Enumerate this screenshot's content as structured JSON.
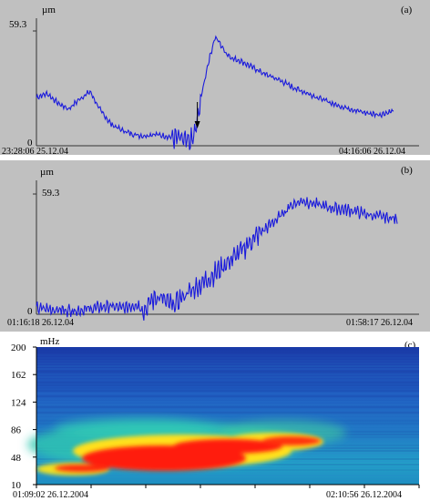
{
  "chart_data": [
    {
      "type": "line",
      "panel_label": "(a)",
      "ylabel": "µm",
      "y_ticks": [
        "59.3",
        "0"
      ],
      "ylim": [
        0,
        59.3
      ],
      "x_start_label": "23:28:06 25.12.04",
      "x_end_label": "04:16:06 26.12.04",
      "arrow_at_fraction": 0.42,
      "color": "#1a1adc",
      "x": [
        0.0,
        0.03,
        0.06,
        0.09,
        0.12,
        0.15,
        0.18,
        0.21,
        0.24,
        0.27,
        0.3,
        0.33,
        0.36,
        0.39,
        0.41,
        0.42,
        0.43,
        0.44,
        0.45,
        0.46,
        0.48,
        0.5,
        0.51,
        0.53,
        0.55,
        0.57,
        0.6,
        0.64,
        0.68,
        0.72,
        0.76,
        0.8,
        0.84,
        0.88,
        0.92,
        0.96,
        1.0
      ],
      "y": [
        25,
        27,
        22,
        19,
        24,
        28,
        18,
        11,
        8,
        6,
        5,
        6,
        5,
        4,
        3,
        1.5,
        2,
        4,
        12,
        24,
        42,
        56,
        54,
        48,
        45,
        44,
        41,
        37,
        34,
        30,
        27,
        24,
        21,
        19,
        17,
        16,
        18
      ]
    },
    {
      "type": "line",
      "panel_label": "(b)",
      "ylabel": "µm",
      "y_ticks": [
        "59.3",
        "0"
      ],
      "ylim": [
        0,
        59.3
      ],
      "x_start_label": "01:16:18 26.12.04",
      "x_end_label": "01:58:17 26.12.04",
      "color": "#1a1adc",
      "x": [
        0.0,
        0.04,
        0.08,
        0.12,
        0.16,
        0.2,
        0.24,
        0.28,
        0.3,
        0.32,
        0.34,
        0.36,
        0.38,
        0.4,
        0.44,
        0.48,
        0.52,
        0.56,
        0.6,
        0.64,
        0.68,
        0.7,
        0.72,
        0.74,
        0.76,
        0.78,
        0.8,
        0.84,
        0.88,
        0.92,
        0.96,
        1.0
      ],
      "y": [
        3,
        2.5,
        2,
        2,
        3,
        4,
        3,
        5,
        2,
        7,
        9,
        6,
        4,
        8,
        13,
        18,
        24,
        30,
        37,
        43,
        49,
        53,
        55,
        56,
        55,
        54,
        53,
        52,
        51,
        49,
        48,
        47
      ]
    },
    {
      "type": "heatmap",
      "panel_label": "(c)",
      "ylabel": "mHz",
      "y_ticks": [
        "200",
        "162",
        "124",
        "86",
        "48",
        "10"
      ],
      "ylim": [
        10,
        200
      ],
      "x_start_label": "01:09:02 26.12.2004",
      "x_end_label": "02:10:56 26.12.2004",
      "colors": {
        "low": "#1a2ba0",
        "mid": "#19a8c8",
        "high": "#ffe01a",
        "peak": "#ff1a10"
      }
    }
  ]
}
